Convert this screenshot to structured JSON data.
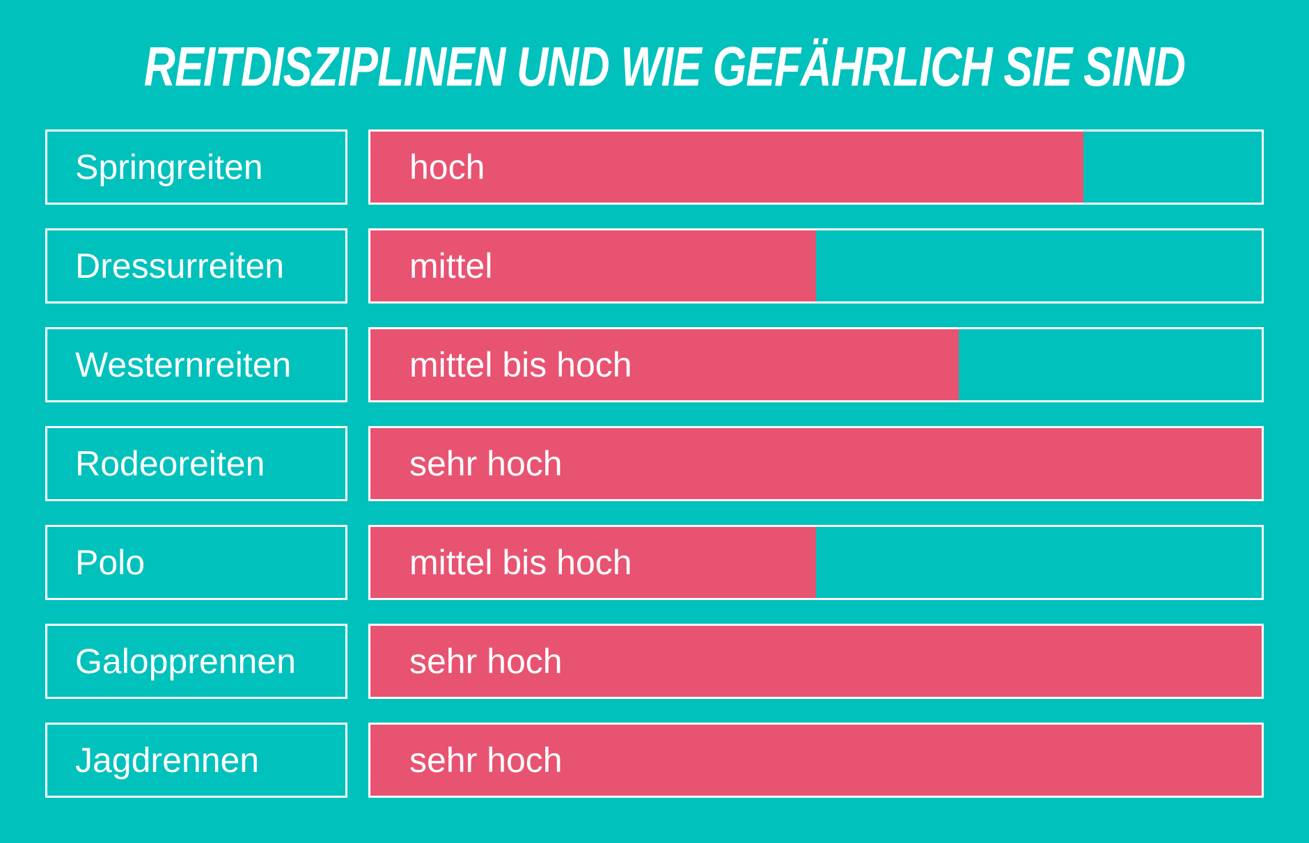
{
  "title": "REITDISZIPLINEN UND WIE GEFÄHRLICH SIE SIND",
  "colors": {
    "background": "#00c1bc",
    "bar": "#e85372",
    "border": "#ffffff",
    "text": "#ffffff"
  },
  "rows": [
    {
      "label": "Springreiten",
      "level": "hoch",
      "fill_pct": 80
    },
    {
      "label": "Dressurreiten",
      "level": "mittel",
      "fill_pct": 50
    },
    {
      "label": "Westernreiten",
      "level": "mittel bis hoch",
      "fill_pct": 66
    },
    {
      "label": "Rodeoreiten",
      "level": "sehr hoch",
      "fill_pct": 100
    },
    {
      "label": "Polo",
      "level": "mittel bis hoch",
      "fill_pct": 50
    },
    {
      "label": "Galopprennen",
      "level": "sehr hoch",
      "fill_pct": 100
    },
    {
      "label": "Jagdrennen",
      "level": "sehr hoch",
      "fill_pct": 100
    }
  ],
  "chart_data": {
    "type": "bar",
    "orientation": "horizontal",
    "title": "REITDISZIPLINEN UND WIE GEFÄHRLICH SIE SIND",
    "categories": [
      "Springreiten",
      "Dressurreiten",
      "Westernreiten",
      "Rodeoreiten",
      "Polo",
      "Galopprennen",
      "Jagdrennen"
    ],
    "values": [
      80,
      50,
      66,
      100,
      50,
      100,
      100
    ],
    "data_labels": [
      "hoch",
      "mittel",
      "mittel bis hoch",
      "sehr hoch",
      "mittel bis hoch",
      "sehr hoch",
      "sehr hoch"
    ],
    "xlabel": "",
    "ylabel": "",
    "xlim": [
      0,
      100
    ],
    "grid": false,
    "legend": null
  }
}
